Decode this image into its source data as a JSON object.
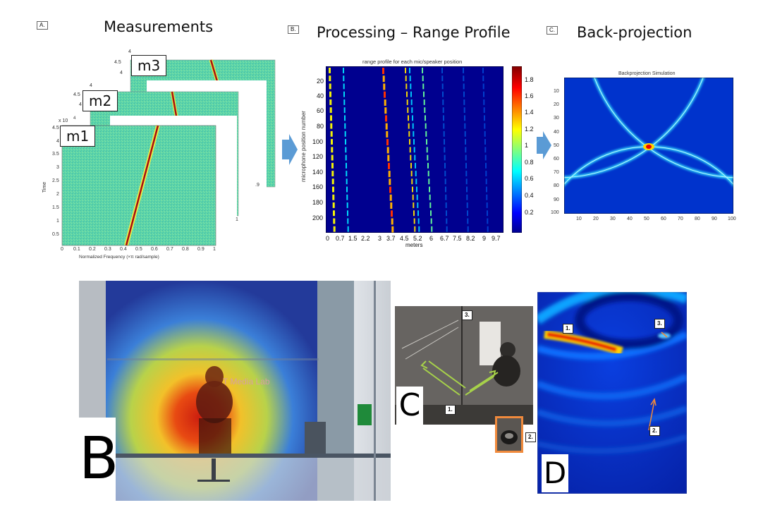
{
  "panel_a": {
    "tag": "A.",
    "heading": "Measurements",
    "layers": [
      "m3",
      "m2",
      "m1"
    ],
    "exp_label": "x 10",
    "exp_value": "4",
    "y_label": "Time",
    "x_label": "Normalized Frequency  (×π rad/sample)",
    "y_ticks": [
      "4.5",
      "4",
      "3.5",
      "3",
      "2.5",
      "2",
      "1.5",
      "1",
      "0.5"
    ],
    "x_ticks": [
      "0",
      "0.1",
      "0.2",
      "0.3",
      "0.4",
      "0.5",
      "0.6",
      "0.7",
      "0.8",
      "0.9",
      "1"
    ],
    "back_ticks_m3": [
      "4.5",
      "4"
    ],
    "back_ticks_m2": [
      "4.5",
      "4"
    ],
    "back_x_m3": ".9",
    "back_x_m2": "1"
  },
  "panel_b": {
    "tag": "B.",
    "heading": "Processing – Range Profile",
    "plot_title": "range profile for each mic/speaker position",
    "y_label": "microphone position number",
    "x_label": "meters",
    "y_ticks": [
      "20",
      "40",
      "60",
      "80",
      "100",
      "120",
      "140",
      "160",
      "180",
      "200"
    ],
    "x_ticks": [
      "0",
      "0.7",
      "1.5",
      "2.2",
      "3",
      "3.7",
      "4.5",
      "5.2",
      "6",
      "6.7",
      "7.5",
      "8.2",
      "9",
      "9.7"
    ],
    "cb_ticks": [
      "1.8",
      "1.6",
      "1.4",
      "1.2",
      "1",
      "0.8",
      "0.6",
      "0.4",
      "0.2"
    ]
  },
  "panel_c": {
    "tag": "C.",
    "heading": "Back-projection",
    "plot_title": "Backprojection Simulation",
    "y_ticks": [
      "10",
      "20",
      "30",
      "40",
      "50",
      "60",
      "70",
      "80",
      "90",
      "100"
    ],
    "x_ticks": [
      "10",
      "20",
      "30",
      "40",
      "50",
      "60",
      "70",
      "80",
      "90",
      "100"
    ]
  },
  "bottom": {
    "letter_b": "B",
    "wall_text": "T Media Lab",
    "letter_c": "C",
    "letter_d": "D",
    "markers_c": [
      "3.",
      "1.",
      "2."
    ],
    "markers_d": [
      "1.",
      "3.",
      "2."
    ]
  },
  "colors": {
    "jet_dark": "#00008f",
    "jet_blue": "#0033ff",
    "jet_cyan": "#00ffff",
    "jet_yellow": "#ffff00",
    "jet_red": "#ff0000",
    "noise_teal": "#5fd3a6",
    "arrow_blue": "#5b9bd5",
    "green_arrow": "#a7d24a",
    "orange": "#f08a3c"
  }
}
